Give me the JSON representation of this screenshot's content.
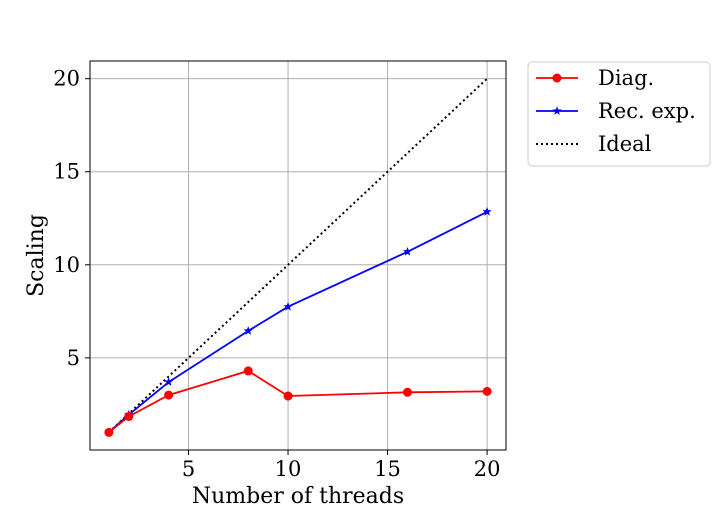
{
  "chart_data": {
    "type": "line",
    "title": "",
    "xlabel": "Number of threads",
    "ylabel": "Scaling",
    "xlim": [
      0.05,
      20.95
    ],
    "ylim": [
      0.05,
      20.95
    ],
    "xticks": [
      5,
      10,
      15,
      20
    ],
    "yticks": [
      5,
      10,
      15,
      20
    ],
    "grid": true,
    "legend_position": "outside-top-right",
    "series": [
      {
        "name": "Diag.",
        "color": "#ff0000",
        "marker": "circle",
        "line_style": "solid",
        "x": [
          1,
          2,
          4,
          8,
          10,
          16,
          20
        ],
        "y": [
          1.0,
          1.85,
          3.0,
          4.3,
          2.95,
          3.15,
          3.2
        ]
      },
      {
        "name": "Rec. exp.",
        "color": "#0000ff",
        "marker": "star",
        "line_style": "solid",
        "x": [
          1,
          2,
          4,
          8,
          10,
          16,
          20
        ],
        "y": [
          1.0,
          1.95,
          3.7,
          6.45,
          7.75,
          10.7,
          12.85
        ]
      },
      {
        "name": "Ideal",
        "color": "#000000",
        "marker": "none",
        "line_style": "dotted",
        "x": [
          1,
          2,
          4,
          8,
          10,
          16,
          20
        ],
        "y": [
          1,
          2,
          4,
          8,
          10,
          16,
          20
        ]
      }
    ]
  }
}
